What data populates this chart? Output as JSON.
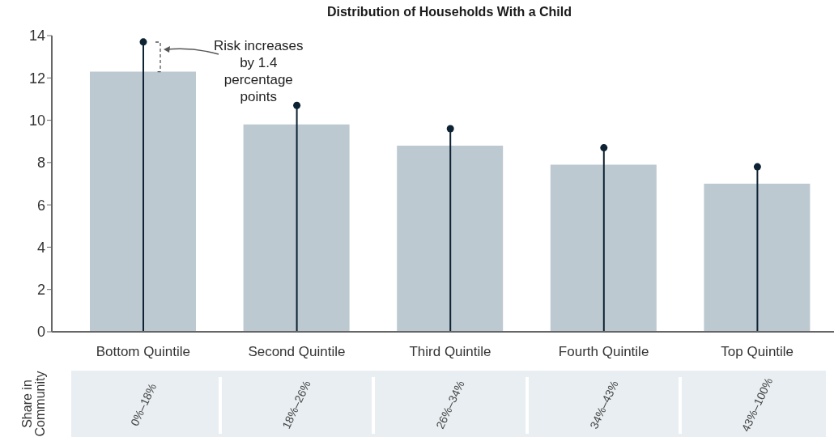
{
  "chart_data": {
    "type": "bar",
    "title": "Distribution of Households With a Child",
    "categories": [
      "Bottom Quintile",
      "Second Quintile",
      "Third Quintile",
      "Fourth Quintile",
      "Top Quintile"
    ],
    "series": [
      {
        "color": "#bdc9d1",
        "values": [
          12.3,
          9.8,
          8.8,
          7.9,
          7.0
        ]
      },
      {
        "type": "lollipop",
        "color": "#0d2233",
        "values": [
          13.7,
          10.7,
          9.6,
          8.7,
          7.8
        ]
      }
    ],
    "ylim": [
      0,
      14
    ],
    "yticks": [
      0,
      2,
      4,
      6,
      8,
      10,
      12,
      14
    ],
    "marker": "circle",
    "annotations": [
      "Risk increases by 1.4 percentage points",
      "Share in Community",
      "0%–18%",
      "18%–26%",
      "26%–34%",
      "34%–43%",
      "43%–100%"
    ]
  }
}
